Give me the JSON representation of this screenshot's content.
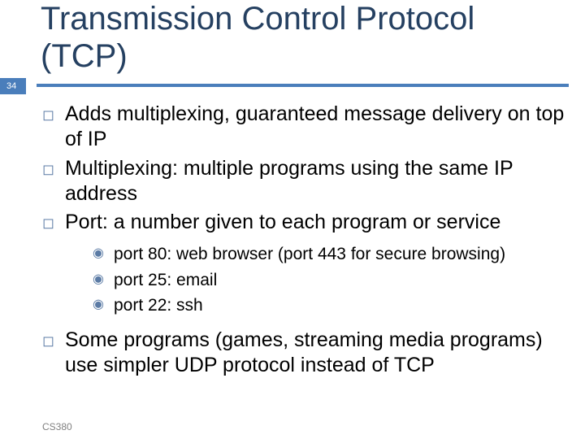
{
  "slide_number": "34",
  "title": "Transmission Control Protocol (TCP)",
  "colors": {
    "accent": "#4a7ebb",
    "title_text": "#254061",
    "body_text": "#000000",
    "bullet": "#5b7ba5",
    "footer_text": "#808080",
    "background": "#ffffff"
  },
  "bullets": {
    "b1": "Adds multiplexing, guaranteed message delivery on top of IP",
    "b2": "Multiplexing: multiple programs using the same IP address",
    "b3": "Port: a number given to each program or service",
    "b4": "Some programs (games, streaming media programs) use simpler UDP protocol instead of TCP"
  },
  "sub_bullets": {
    "s1": "port 80: web browser (port 443 for secure browsing)",
    "s2": "port 25: email",
    "s3": "port 22: ssh"
  },
  "footer": "CS380",
  "typography": {
    "title_fontsize": 40,
    "body_fontsize": 25,
    "sub_fontsize": 21,
    "footer_fontsize": 12
  }
}
